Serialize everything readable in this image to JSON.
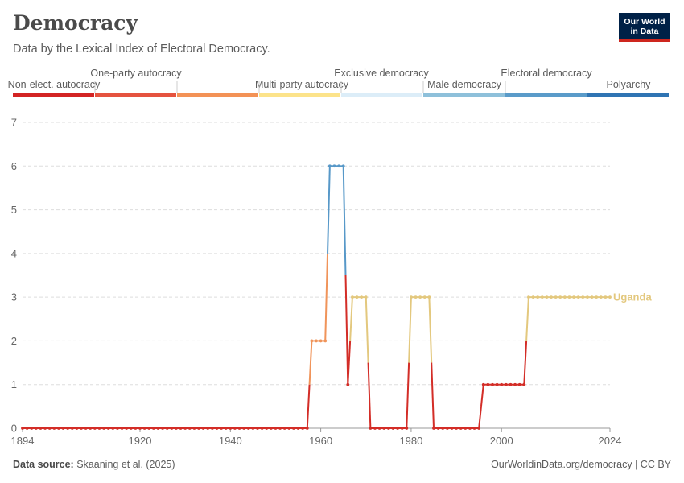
{
  "header": {
    "title": "Democracy",
    "subtitle": "Data by the Lexical Index of Electoral Democracy."
  },
  "logo": {
    "line1": "Our World",
    "line2": "in Data"
  },
  "legend": {
    "items": [
      {
        "label": "Non-elect. autocracy",
        "color": "#d32424"
      },
      {
        "label": "One-party autocracy",
        "color": "#e5533f"
      },
      {
        "label": "Multi-party autocracy",
        "color": "#f39256"
      },
      {
        "label": "Exclusive democracy",
        "color": "#fce38a"
      },
      {
        "label": "Male democracy",
        "color": "#dcedf8"
      },
      {
        "label": "Electoral democracy",
        "color": "#8ec0da"
      },
      {
        "label": "Polyarchy",
        "color": "#5a9bc9"
      },
      {
        "label": "",
        "color": "#2f74b3"
      }
    ]
  },
  "chart_data": {
    "type": "line",
    "title": "Democracy",
    "subtitle": "Data by the Lexical Index of Electoral Democracy.",
    "xlim": [
      1894,
      2024
    ],
    "ylim": [
      0,
      7
    ],
    "x_ticks": [
      1894,
      1920,
      1940,
      1960,
      1980,
      2000,
      2024
    ],
    "y_ticks": [
      0,
      1,
      2,
      3,
      4,
      5,
      6,
      7
    ],
    "grid": true,
    "series": [
      {
        "name": "Uganda",
        "values": [
          [
            1894,
            0
          ],
          [
            1895,
            0
          ],
          [
            1896,
            0
          ],
          [
            1897,
            0
          ],
          [
            1898,
            0
          ],
          [
            1899,
            0
          ],
          [
            1900,
            0
          ],
          [
            1901,
            0
          ],
          [
            1902,
            0
          ],
          [
            1903,
            0
          ],
          [
            1904,
            0
          ],
          [
            1905,
            0
          ],
          [
            1906,
            0
          ],
          [
            1907,
            0
          ],
          [
            1908,
            0
          ],
          [
            1909,
            0
          ],
          [
            1910,
            0
          ],
          [
            1911,
            0
          ],
          [
            1912,
            0
          ],
          [
            1913,
            0
          ],
          [
            1914,
            0
          ],
          [
            1915,
            0
          ],
          [
            1916,
            0
          ],
          [
            1917,
            0
          ],
          [
            1918,
            0
          ],
          [
            1919,
            0
          ],
          [
            1920,
            0
          ],
          [
            1921,
            0
          ],
          [
            1922,
            0
          ],
          [
            1923,
            0
          ],
          [
            1924,
            0
          ],
          [
            1925,
            0
          ],
          [
            1926,
            0
          ],
          [
            1927,
            0
          ],
          [
            1928,
            0
          ],
          [
            1929,
            0
          ],
          [
            1930,
            0
          ],
          [
            1931,
            0
          ],
          [
            1932,
            0
          ],
          [
            1933,
            0
          ],
          [
            1934,
            0
          ],
          [
            1935,
            0
          ],
          [
            1936,
            0
          ],
          [
            1937,
            0
          ],
          [
            1938,
            0
          ],
          [
            1939,
            0
          ],
          [
            1940,
            0
          ],
          [
            1941,
            0
          ],
          [
            1942,
            0
          ],
          [
            1943,
            0
          ],
          [
            1944,
            0
          ],
          [
            1945,
            0
          ],
          [
            1946,
            0
          ],
          [
            1947,
            0
          ],
          [
            1948,
            0
          ],
          [
            1949,
            0
          ],
          [
            1950,
            0
          ],
          [
            1951,
            0
          ],
          [
            1952,
            0
          ],
          [
            1953,
            0
          ],
          [
            1954,
            0
          ],
          [
            1955,
            0
          ],
          [
            1956,
            0
          ],
          [
            1957,
            0
          ],
          [
            1958,
            2
          ],
          [
            1959,
            2
          ],
          [
            1960,
            2
          ],
          [
            1961,
            2
          ],
          [
            1962,
            6
          ],
          [
            1963,
            6
          ],
          [
            1964,
            6
          ],
          [
            1965,
            6
          ],
          [
            1966,
            1
          ],
          [
            1967,
            3
          ],
          [
            1968,
            3
          ],
          [
            1969,
            3
          ],
          [
            1970,
            3
          ],
          [
            1971,
            0
          ],
          [
            1972,
            0
          ],
          [
            1973,
            0
          ],
          [
            1974,
            0
          ],
          [
            1975,
            0
          ],
          [
            1976,
            0
          ],
          [
            1977,
            0
          ],
          [
            1978,
            0
          ],
          [
            1979,
            0
          ],
          [
            1980,
            3
          ],
          [
            1981,
            3
          ],
          [
            1982,
            3
          ],
          [
            1983,
            3
          ],
          [
            1984,
            3
          ],
          [
            1985,
            0
          ],
          [
            1986,
            0
          ],
          [
            1987,
            0
          ],
          [
            1988,
            0
          ],
          [
            1989,
            0
          ],
          [
            1990,
            0
          ],
          [
            1991,
            0
          ],
          [
            1992,
            0
          ],
          [
            1993,
            0
          ],
          [
            1994,
            0
          ],
          [
            1995,
            0
          ],
          [
            1996,
            1
          ],
          [
            1997,
            1
          ],
          [
            1998,
            1
          ],
          [
            1999,
            1
          ],
          [
            2000,
            1
          ],
          [
            2001,
            1
          ],
          [
            2002,
            1
          ],
          [
            2003,
            1
          ],
          [
            2004,
            1
          ],
          [
            2005,
            1
          ],
          [
            2006,
            3
          ],
          [
            2007,
            3
          ],
          [
            2008,
            3
          ],
          [
            2009,
            3
          ],
          [
            2010,
            3
          ],
          [
            2011,
            3
          ],
          [
            2012,
            3
          ],
          [
            2013,
            3
          ],
          [
            2014,
            3
          ],
          [
            2015,
            3
          ],
          [
            2016,
            3
          ],
          [
            2017,
            3
          ],
          [
            2018,
            3
          ],
          [
            2019,
            3
          ],
          [
            2020,
            3
          ],
          [
            2021,
            3
          ],
          [
            2022,
            3
          ],
          [
            2023,
            3
          ],
          [
            2024,
            3
          ]
        ]
      }
    ],
    "level_colors": [
      "#d32d27",
      "#d32d27",
      "#f0945a",
      "#e3c87e",
      "#e3c87e",
      "#e3c87e",
      "#5798c8",
      "#5798c8"
    ],
    "legend_placement": "top"
  },
  "footer": {
    "source_label": "Data source:",
    "source_text": "Skaaning et al. (2025)",
    "url": "OurWorldinData.org/democracy | CC BY"
  }
}
